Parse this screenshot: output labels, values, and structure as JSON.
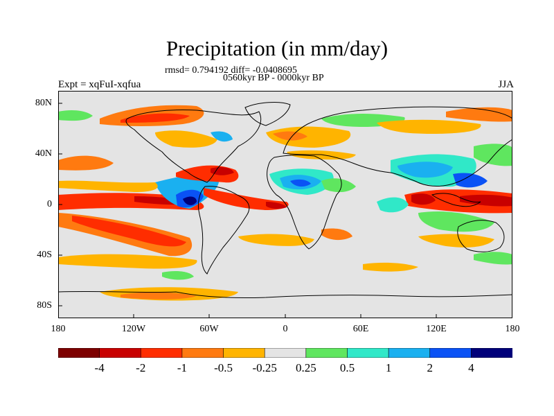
{
  "title": "Precipitation (in mm/day)",
  "stats_line": "rmsd= 0.794192 diff= -0.0408695",
  "period_line": "0560kyr BP - 0000kyr BP",
  "experiment_label": "Expt = xqFuI-xqfua",
  "season_label": "JJA",
  "map": {
    "projection": "cylindrical-equidistant",
    "lon_range": [
      -180,
      180
    ],
    "lat_range": [
      -90,
      90
    ],
    "x_tick_labels": [
      "180",
      "120W",
      "60W",
      "0",
      "60E",
      "120E",
      "180"
    ],
    "y_tick_labels": [
      "80N",
      "40N",
      "0",
      "40S",
      "80S"
    ],
    "background_color": "#e4e4e4",
    "land_outline_color": "#000000"
  },
  "colorbar": {
    "tick_labels": [
      "-4",
      "-2",
      "-1",
      "-0.5",
      "-0.25",
      "0.25",
      "0.5",
      "1",
      "2",
      "4"
    ],
    "colors": [
      "#7d0000",
      "#c80000",
      "#ff2d00",
      "#ff7a10",
      "#ffb400",
      "#e4e4e4",
      "#5fe65f",
      "#30e8c8",
      "#1ab0f0",
      "#0a52f5",
      "#00007a"
    ]
  }
}
